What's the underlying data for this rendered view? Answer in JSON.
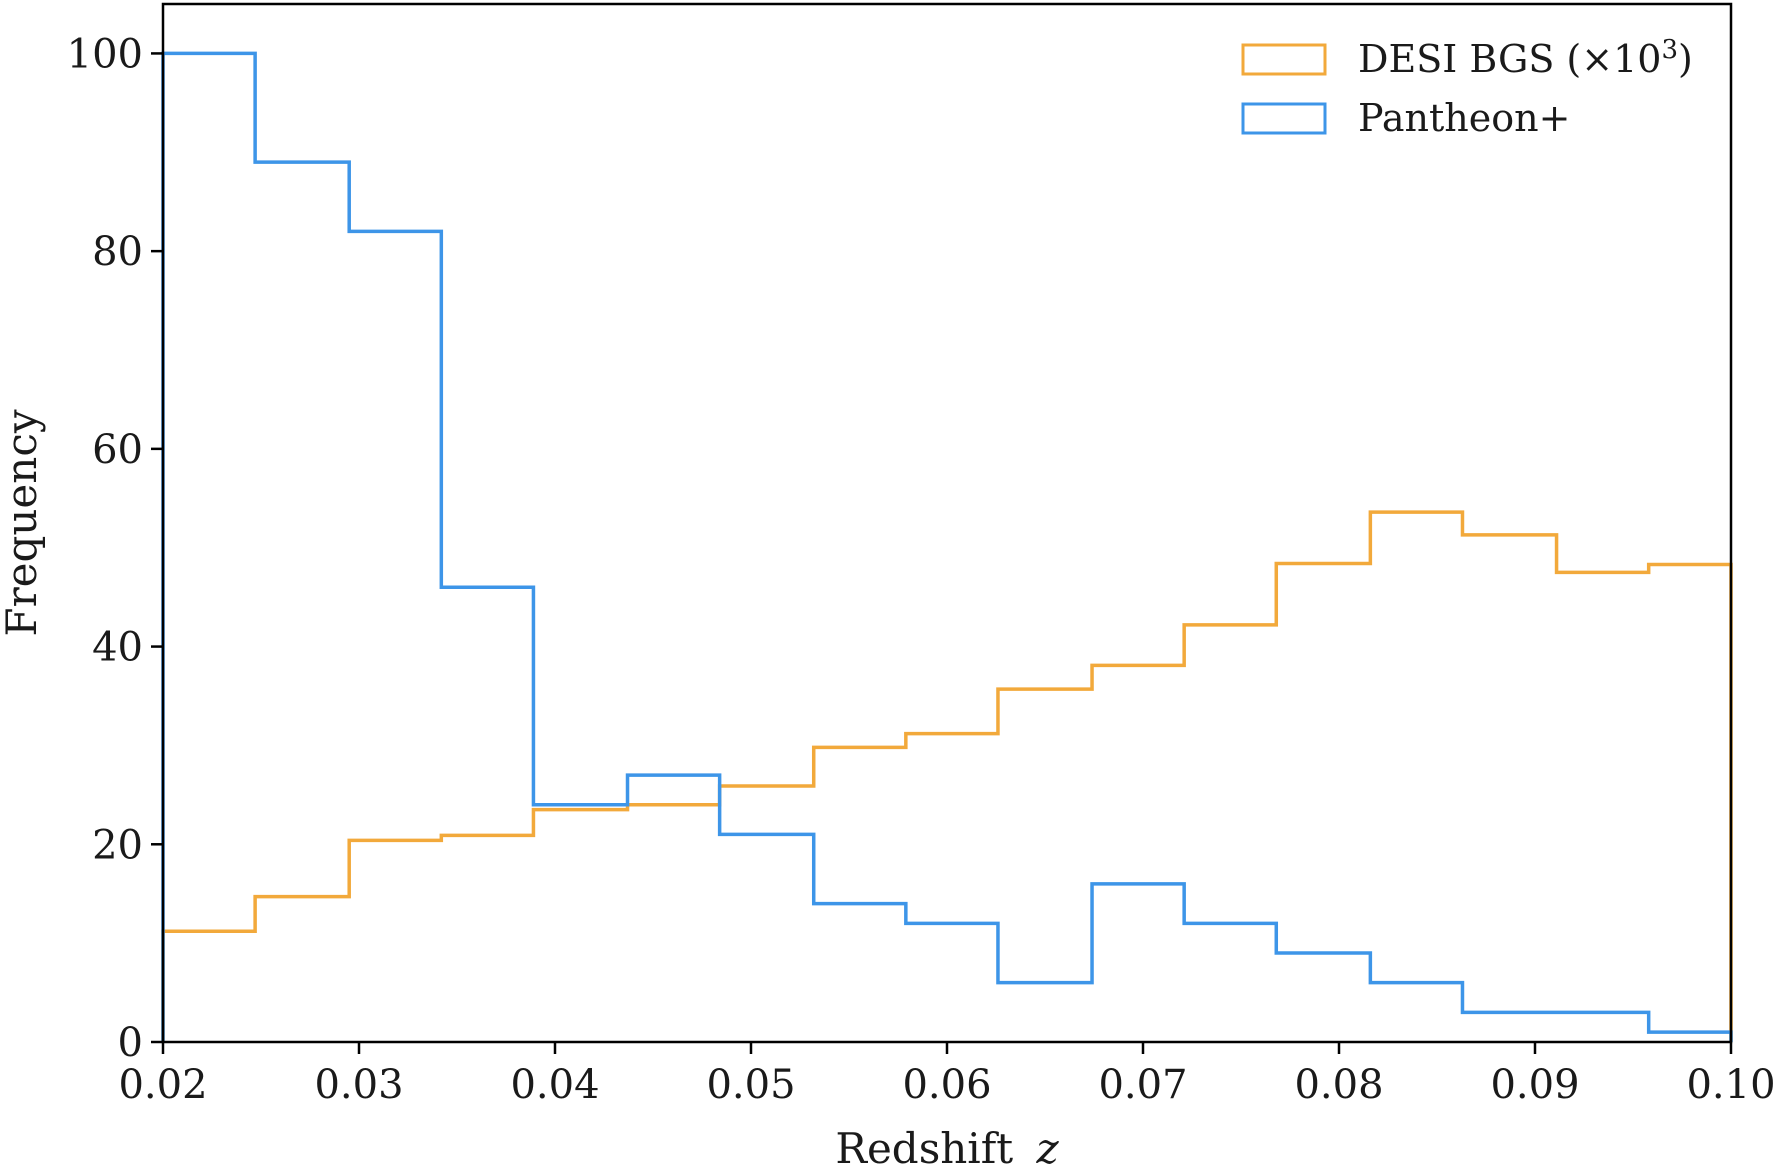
{
  "chart_data": {
    "type": "histogram",
    "xlabel": "Redshift",
    "xlabel_var": "z",
    "ylabel": "Frequency",
    "xlim": [
      0.02,
      0.1
    ],
    "ylim": [
      0,
      105
    ],
    "xticks": [
      "0.02",
      "0.03",
      "0.04",
      "0.05",
      "0.06",
      "0.07",
      "0.08",
      "0.09",
      "0.10"
    ],
    "yticks": [
      "0",
      "20",
      "40",
      "60",
      "80",
      "100"
    ],
    "grid": false,
    "legend_position": "top-right",
    "bin_edges": [
      0.02,
      0.0247,
      0.0295,
      0.0342,
      0.0389,
      0.0437,
      0.0484,
      0.0532,
      0.0579,
      0.0626,
      0.0674,
      0.0721,
      0.0768,
      0.0816,
      0.0863,
      0.0911,
      0.0958,
      0.1
    ],
    "series": [
      {
        "name": "DESI BGS (×10",
        "name_sup": "3",
        "name_end": ")",
        "color": "#f2a93b",
        "values": [
          11.2,
          14.7,
          20.4,
          20.9,
          23.5,
          24.0,
          25.9,
          29.8,
          31.2,
          35.7,
          38.1,
          42.2,
          48.4,
          53.6,
          51.3,
          47.5,
          48.3
        ]
      },
      {
        "name": "Pantheon+",
        "color": "#3d95e8",
        "values": [
          100,
          89,
          82,
          46,
          24,
          27,
          21,
          14,
          12,
          6,
          16,
          12,
          9,
          6,
          3,
          3,
          1
        ]
      }
    ]
  }
}
